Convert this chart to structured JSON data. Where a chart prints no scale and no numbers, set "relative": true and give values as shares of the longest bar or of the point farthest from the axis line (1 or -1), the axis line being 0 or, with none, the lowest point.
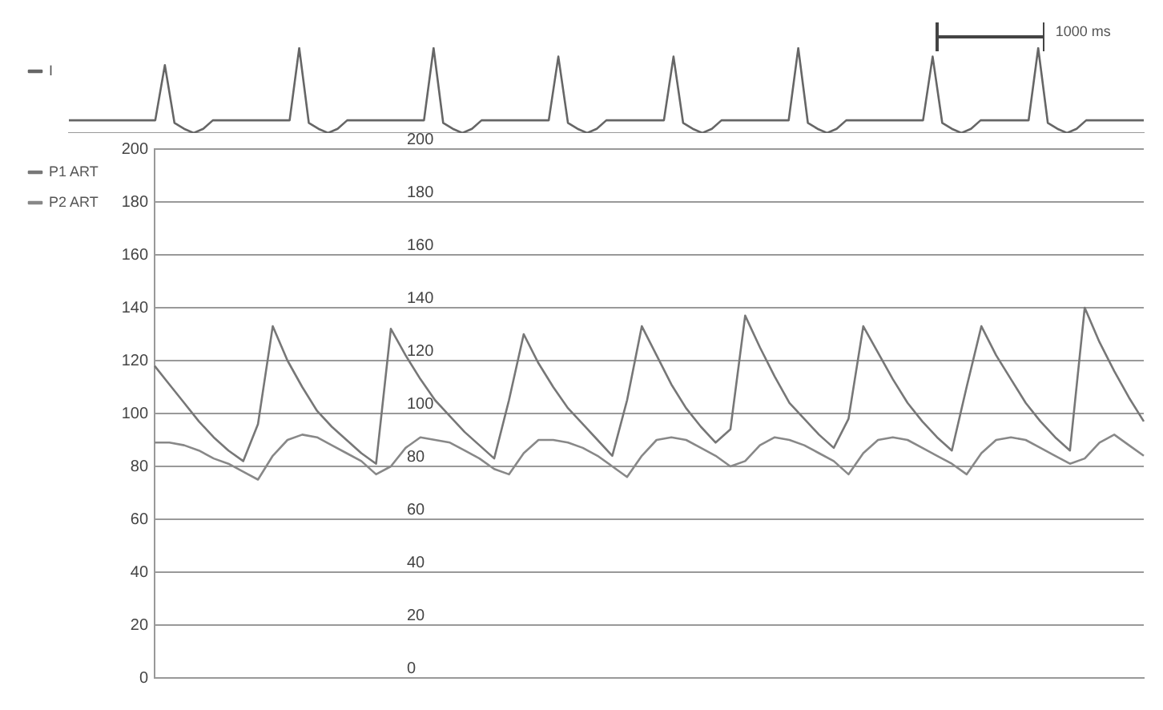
{
  "chart_data": [
    {
      "type": "line",
      "relative": true,
      "legend": "left",
      "marker": "none",
      "line_style": "solid",
      "tick_labels": false,
      "annotations": [
        "1000 ms"
      ],
      "categories": [
        null,
        null,
        null,
        null,
        null,
        null,
        null,
        null,
        null,
        null,
        null,
        null,
        null,
        null,
        null,
        null,
        null,
        null,
        null,
        null,
        null,
        null,
        null,
        null,
        null,
        null,
        null,
        null,
        null,
        null,
        null,
        null,
        null,
        null,
        null,
        null,
        null,
        null,
        null,
        null,
        null,
        null,
        null,
        null,
        null,
        null,
        null,
        null,
        null,
        null,
        null,
        null,
        null,
        null,
        null,
        null,
        null,
        null,
        null,
        null,
        null,
        null,
        null,
        null,
        null,
        null,
        null,
        null,
        null,
        null,
        null,
        null,
        null,
        null,
        null,
        null,
        null,
        null,
        null,
        null,
        null,
        null,
        null,
        null,
        null,
        null,
        null,
        null,
        null,
        null,
        null,
        null,
        null,
        null,
        null,
        null,
        null,
        null,
        null,
        null,
        null,
        null,
        null,
        null,
        null,
        null,
        null,
        null,
        null,
        null,
        null,
        null,
        null
      ],
      "series": [
        {
          "name": "I",
          "color": "#666666",
          "values": [
            0.15,
            0.15,
            0.15,
            0.15,
            0.15,
            0.15,
            0.15,
            0.15,
            0.15,
            0.15,
            0.8,
            0.12,
            0.05,
            0,
            0.05,
            0.15,
            0.15,
            0.15,
            0.15,
            0.15,
            0.15,
            0.15,
            0.15,
            0.15,
            1,
            0.12,
            0.05,
            0,
            0.05,
            0.15,
            0.15,
            0.15,
            0.15,
            0.15,
            0.15,
            0.15,
            0.15,
            0.15,
            1,
            0.12,
            0.05,
            0,
            0.05,
            0.15,
            0.15,
            0.15,
            0.15,
            0.15,
            0.15,
            0.15,
            0.15,
            0.9,
            0.12,
            0.05,
            0,
            0.05,
            0.15,
            0.15,
            0.15,
            0.15,
            0.15,
            0.15,
            0.15,
            0.9,
            0.12,
            0.05,
            0,
            0.05,
            0.15,
            0.15,
            0.15,
            0.15,
            0.15,
            0.15,
            0.15,
            0.15,
            1,
            0.12,
            0.05,
            0,
            0.05,
            0.15,
            0.15,
            0.15,
            0.15,
            0.15,
            0.15,
            0.15,
            0.15,
            0.15,
            0.9,
            0.12,
            0.05,
            0,
            0.05,
            0.15,
            0.15,
            0.15,
            0.15,
            0.15,
            0.15,
            1,
            0.12,
            0.05,
            0,
            0.05,
            0.15,
            0.15,
            0.15,
            0.15,
            0.15,
            0.15,
            0.15
          ]
        }
      ]
    },
    {
      "type": "line",
      "legend": "left",
      "marker": "none",
      "line_style": "solid",
      "grid": "y",
      "tick_labels": "y",
      "ylim": [
        0,
        200
      ],
      "y2lim": [
        0,
        200
      ],
      "y2ticks": [
        0,
        20,
        40,
        60,
        80,
        100,
        120,
        140,
        160,
        180,
        200
      ],
      "yticks": [
        0,
        20,
        40,
        60,
        80,
        100,
        120,
        140,
        160,
        180,
        200
      ],
      "categories": [
        null,
        null,
        null,
        null,
        null,
        null,
        null,
        null,
        null,
        null,
        null,
        null,
        null,
        null,
        null,
        null,
        null,
        null,
        null,
        null,
        null,
        null,
        null,
        null,
        null,
        null,
        null,
        null,
        null,
        null,
        null,
        null,
        null,
        null,
        null,
        null,
        null,
        null,
        null,
        null,
        null,
        null,
        null,
        null,
        null,
        null,
        null,
        null,
        null,
        null,
        null,
        null,
        null,
        null,
        null,
        null,
        null,
        null,
        null,
        null,
        null,
        null,
        null,
        null,
        null,
        null,
        null,
        null
      ],
      "series": [
        {
          "name": "P1 ART",
          "color": "#777777",
          "values": [
            118,
            111,
            104,
            97,
            91,
            86,
            82,
            96,
            133,
            120,
            110,
            101,
            95,
            90,
            85,
            81,
            132,
            122,
            113,
            105,
            99,
            93,
            88,
            83,
            105,
            130,
            119,
            110,
            102,
            96,
            90,
            84,
            105,
            133,
            122,
            111,
            102,
            95,
            89,
            94,
            137,
            125,
            114,
            104,
            98,
            92,
            87,
            98,
            133,
            123,
            113,
            104,
            97,
            91,
            86,
            110,
            133,
            122,
            113,
            104,
            97,
            91,
            86,
            140,
            127,
            116,
            106,
            97
          ]
        },
        {
          "name": "P2 ART",
          "color": "#888888",
          "values": [
            89,
            89,
            88,
            86,
            83,
            81,
            78,
            75,
            84,
            90,
            92,
            91,
            88,
            85,
            82,
            77,
            80,
            87,
            91,
            90,
            89,
            86,
            83,
            79,
            77,
            85,
            90,
            90,
            89,
            87,
            84,
            80,
            76,
            84,
            90,
            91,
            90,
            87,
            84,
            80,
            82,
            88,
            91,
            90,
            88,
            85,
            82,
            77,
            85,
            90,
            91,
            90,
            87,
            84,
            81,
            77,
            85,
            90,
            91,
            90,
            87,
            84,
            81,
            83,
            89,
            92,
            88,
            84
          ]
        }
      ]
    }
  ]
}
